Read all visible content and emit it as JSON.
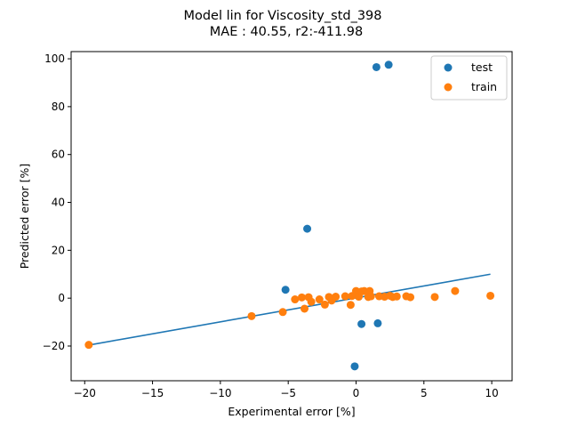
{
  "chart_data": {
    "type": "scatter",
    "title_line1": "Model lin for Viscosity_std_398",
    "title_line2": "MAE :  40.55, r2:-411.98",
    "xlabel": "Experimental error [%]",
    "ylabel": "Predicted error [%]",
    "xlim": [
      -21.0,
      11.5
    ],
    "ylim": [
      -34.5,
      103.0
    ],
    "xticks": [
      -20,
      -15,
      -10,
      -5,
      0,
      5,
      10
    ],
    "xtick_labels": [
      "−20",
      "−15",
      "−10",
      "−5",
      "0",
      "5",
      "10"
    ],
    "yticks": [
      -20,
      0,
      20,
      40,
      60,
      80,
      100
    ],
    "ytick_labels": [
      "−20",
      "0",
      "20",
      "40",
      "60",
      "80",
      "100"
    ],
    "grid": false,
    "legend_position": "top-right",
    "fit_line": {
      "x": [
        -19.7,
        9.9
      ],
      "y": [
        -19.6,
        10.0
      ],
      "color": "#1f77b4"
    },
    "series": [
      {
        "name": "test",
        "color": "#1f77b4",
        "x": [
          1.5,
          2.4,
          -3.6,
          -5.2,
          0.4,
          1.6,
          -0.1
        ],
        "y": [
          96.5,
          97.5,
          29.0,
          3.5,
          -10.8,
          -10.5,
          -28.5
        ]
      },
      {
        "name": "train",
        "color": "#ff7f0e",
        "x": [
          -19.7,
          -7.7,
          -5.4,
          -4.5,
          -4.0,
          -3.8,
          -3.5,
          -3.3,
          -2.7,
          -2.3,
          -2.0,
          -1.8,
          -1.5,
          -0.8,
          -0.4,
          -0.3,
          0.0,
          0.2,
          0.4,
          0.6,
          0.9,
          1.0,
          1.1,
          1.7,
          2.1,
          2.5,
          2.7,
          3.0,
          3.7,
          4.0,
          5.8,
          7.3,
          9.9
        ],
        "y": [
          -19.5,
          -7.5,
          -5.8,
          -0.5,
          0.3,
          -4.4,
          0.4,
          -1.5,
          -0.5,
          -2.7,
          0.5,
          -1.0,
          0.6,
          0.8,
          -2.8,
          0.9,
          3.0,
          0.6,
          2.8,
          3.0,
          0.5,
          3.0,
          0.8,
          0.8,
          0.6,
          1.0,
          0.5,
          0.7,
          0.8,
          0.4,
          0.5,
          3.0,
          1.0
        ]
      }
    ]
  }
}
